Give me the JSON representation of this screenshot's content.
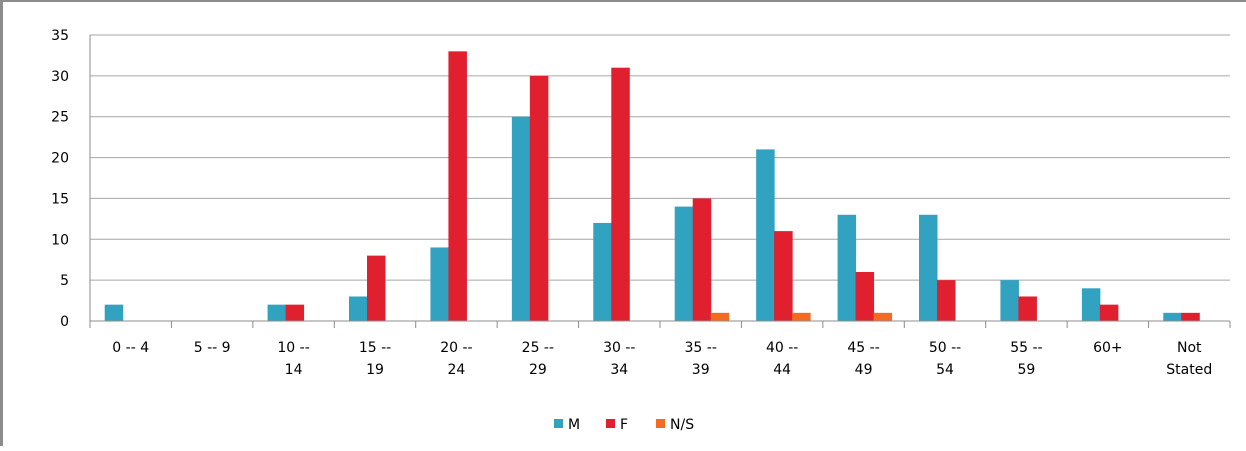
{
  "chart_data": {
    "type": "bar",
    "title": "",
    "xlabel": "",
    "ylabel": "",
    "ylim": [
      0,
      35
    ],
    "yticks": [
      0,
      5,
      10,
      15,
      20,
      25,
      30,
      35
    ],
    "grid": "horizontal",
    "legend_position": "bottom",
    "categories": [
      [
        "0 -- 4"
      ],
      [
        "5 -- 9"
      ],
      [
        "10 --",
        "14"
      ],
      [
        "15 --",
        "19"
      ],
      [
        "20 --",
        "24"
      ],
      [
        "25 --",
        "29"
      ],
      [
        "30 --",
        "34"
      ],
      [
        "35 --",
        "39"
      ],
      [
        "40 --",
        "44"
      ],
      [
        "45 --",
        "49"
      ],
      [
        "50 --",
        "54"
      ],
      [
        "55 --",
        "59"
      ],
      [
        "60+"
      ],
      [
        "Not",
        "Stated"
      ]
    ],
    "series": [
      {
        "name": "M",
        "color": "#31a2bf",
        "values": [
          2,
          0,
          2,
          3,
          9,
          25,
          12,
          14,
          21,
          13,
          13,
          5,
          4,
          1
        ]
      },
      {
        "name": "F",
        "color": "#e0202f",
        "values": [
          0,
          0,
          2,
          8,
          33,
          30,
          31,
          15,
          11,
          6,
          5,
          3,
          2,
          1
        ]
      },
      {
        "name": "N/S",
        "color": "#f26b21",
        "values": [
          0,
          0,
          0,
          0,
          0,
          0,
          0,
          1,
          1,
          1,
          0,
          0,
          0,
          0
        ]
      }
    ]
  }
}
